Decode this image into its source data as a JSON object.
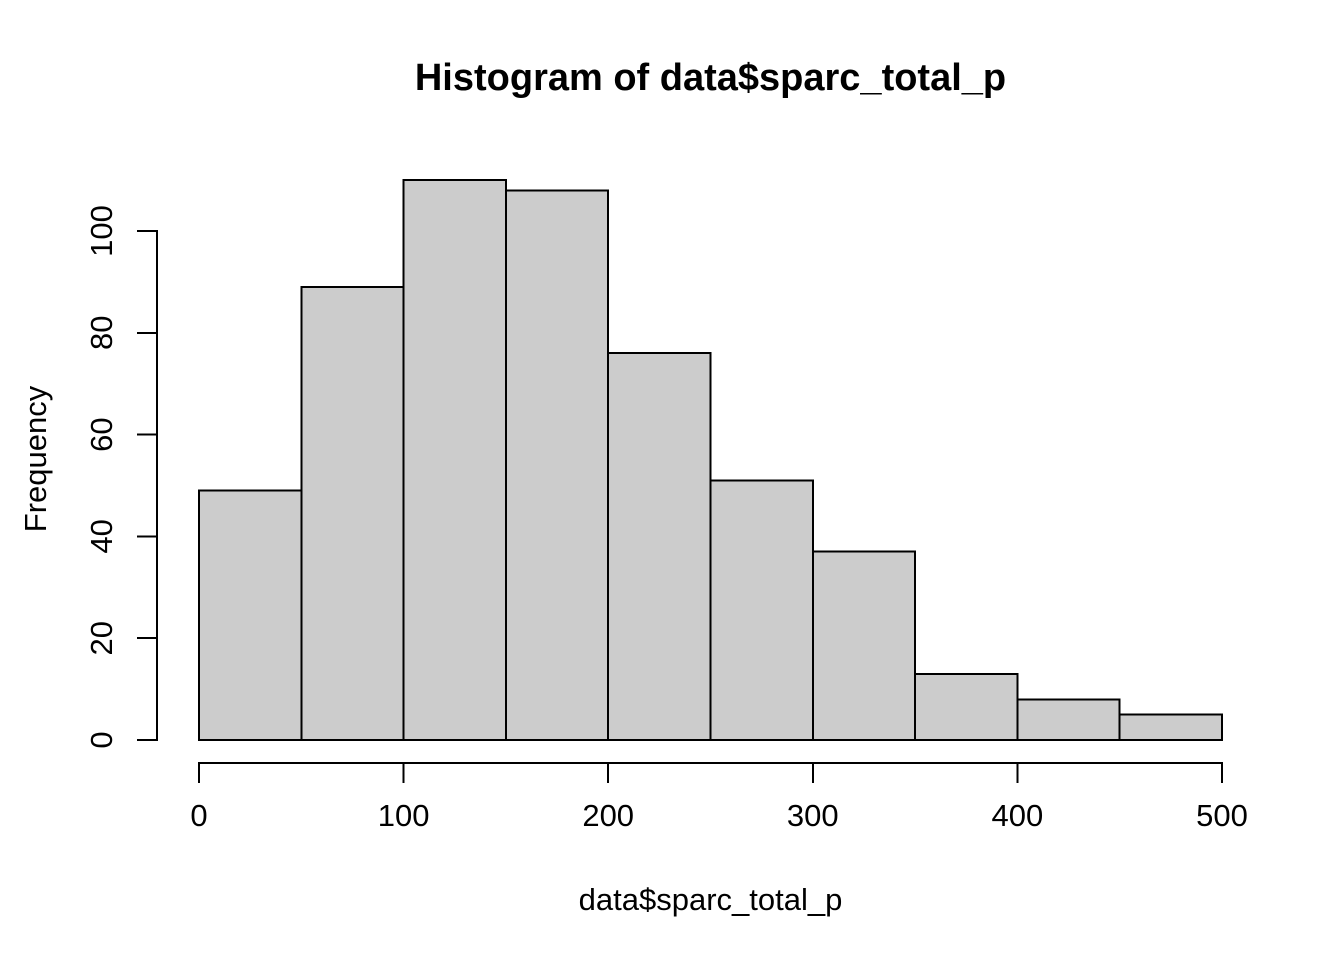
{
  "chart_data": {
    "type": "bar",
    "subtype": "histogram",
    "title": "Histogram of data$sparc_total_p",
    "xlabel": "data$sparc_total_p",
    "ylabel": "Frequency",
    "bin_edges": [
      0,
      50,
      100,
      150,
      200,
      250,
      300,
      350,
      400,
      450,
      500
    ],
    "frequencies": [
      49,
      89,
      110,
      108,
      76,
      51,
      37,
      13,
      8,
      5
    ],
    "x_ticks": [
      0,
      100,
      200,
      300,
      400,
      500
    ],
    "y_ticks": [
      0,
      20,
      40,
      60,
      80,
      100
    ],
    "xlim": [
      0,
      500
    ],
    "ylim": [
      0,
      110
    ],
    "y_axis_range": [
      0,
      100
    ],
    "grid": false,
    "legend": null,
    "colors": {
      "bar_fill": "#CCCCCC",
      "bar_stroke": "#000000",
      "axis": "#000000",
      "text": "#000000",
      "background": "#FFFFFF"
    }
  }
}
